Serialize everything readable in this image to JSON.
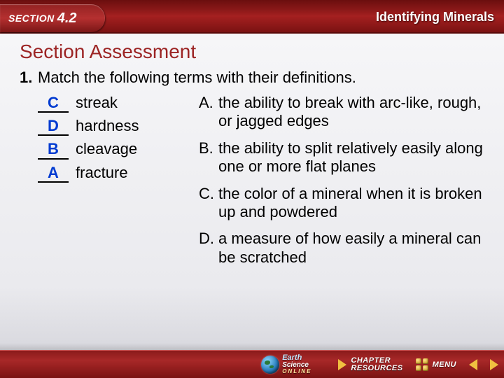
{
  "header": {
    "section_label": "SECTION",
    "section_number": "4.2",
    "topic": "Identifying Minerals"
  },
  "assessment": {
    "title": "Section Assessment",
    "question_number": "1.",
    "question_text": "Match the following terms with their definitions.",
    "terms": [
      {
        "answer": "C",
        "term": "streak"
      },
      {
        "answer": "D",
        "term": "hardness"
      },
      {
        "answer": "B",
        "term": "cleavage"
      },
      {
        "answer": "A",
        "term": "fracture"
      }
    ],
    "definitions": [
      {
        "letter": "A.",
        "text": "the ability to break with arc-like, rough, or jagged edges"
      },
      {
        "letter": "B.",
        "text": "the ability to split relatively easily along one or more flat planes"
      },
      {
        "letter": "C.",
        "text": "the color of a mineral when it is broken up and powdered"
      },
      {
        "letter": "D.",
        "text": "a measure of how easily a mineral can be scratched"
      }
    ]
  },
  "footer": {
    "online_earth": "Earth",
    "online_science": "Science",
    "online_label": "ONLINE",
    "chapter": "CHAPTER",
    "resources": "RESOURCES",
    "menu": "MENU"
  },
  "colors": {
    "accent_red": "#9c2424",
    "answer_blue": "#003bd1",
    "gold": "#f0c040"
  }
}
